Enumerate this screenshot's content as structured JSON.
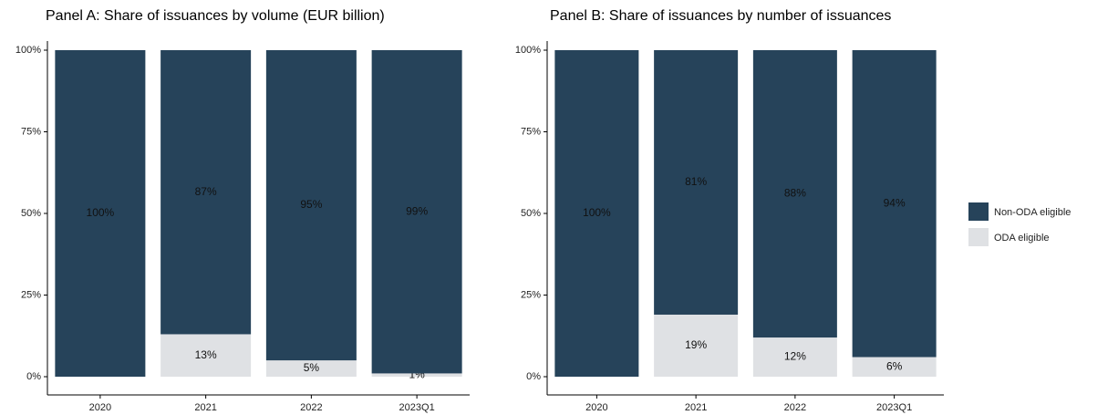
{
  "chart_data": [
    {
      "type": "stacked_bar",
      "title": "Panel A: Share of issuances by volume (EUR billion)",
      "categories": [
        "2020",
        "2021",
        "2022",
        "2023Q1"
      ],
      "series": [
        {
          "name": "ODA eligible",
          "color": "#dfe1e4",
          "values": [
            0,
            13,
            5,
            1
          ],
          "value_labels": [
            null,
            "13%",
            "5%",
            "1%"
          ]
        },
        {
          "name": "Non-ODA eligible",
          "color": "#26435a",
          "values": [
            100,
            87,
            95,
            99
          ],
          "value_labels": [
            "100%",
            "87%",
            "95%",
            "99%"
          ]
        }
      ],
      "ylim": [
        0,
        100
      ],
      "yticks": [
        {
          "value": 0,
          "label": "0%"
        },
        {
          "value": 25,
          "label": "25%"
        },
        {
          "value": 50,
          "label": "50%"
        },
        {
          "value": 75,
          "label": "75%"
        },
        {
          "value": 100,
          "label": "100%"
        }
      ],
      "grid": false
    },
    {
      "type": "stacked_bar",
      "title": "Panel B: Share of issuances by number of issuances",
      "categories": [
        "2020",
        "2021",
        "2022",
        "2023Q1"
      ],
      "series": [
        {
          "name": "ODA eligible",
          "color": "#dfe1e4",
          "values": [
            0,
            19,
            12,
            6
          ],
          "value_labels": [
            null,
            "19%",
            "12%",
            "6%"
          ]
        },
        {
          "name": "Non-ODA eligible",
          "color": "#26435a",
          "values": [
            100,
            81,
            88,
            94
          ],
          "value_labels": [
            "100%",
            "81%",
            "88%",
            "94%"
          ]
        }
      ],
      "ylim": [
        0,
        100
      ],
      "yticks": [
        {
          "value": 0,
          "label": "0%"
        },
        {
          "value": 25,
          "label": "25%"
        },
        {
          "value": 50,
          "label": "50%"
        },
        {
          "value": 75,
          "label": "75%"
        },
        {
          "value": 100,
          "label": "100%"
        }
      ],
      "grid": false,
      "legend": "right"
    }
  ]
}
